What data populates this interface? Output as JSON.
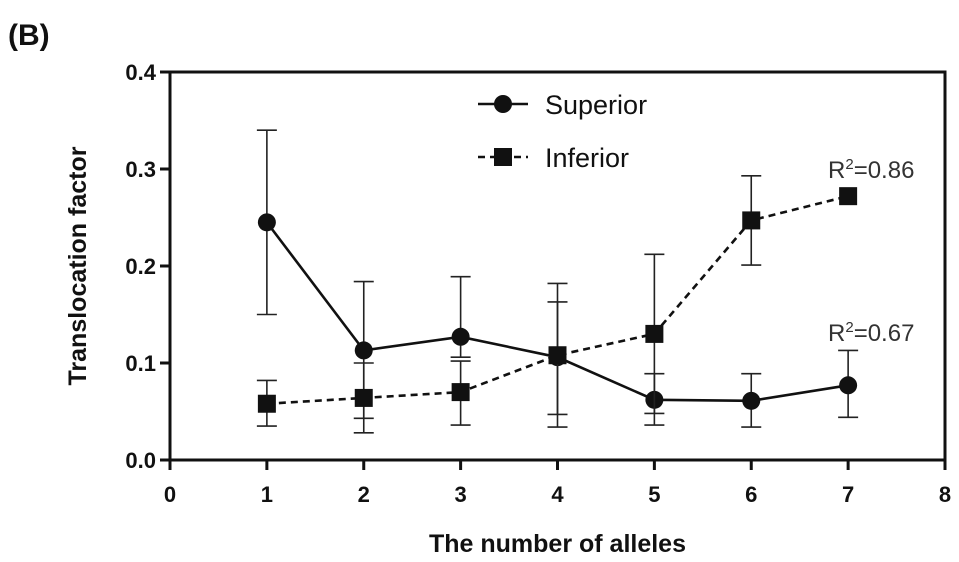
{
  "panel_label": "(B)",
  "chart_data": {
    "type": "line",
    "xlabel": "The number of alleles",
    "ylabel": "Translocation factor",
    "xlim": [
      0,
      8
    ],
    "ylim": [
      0,
      0.4
    ],
    "x_ticks": [
      "0",
      "1",
      "2",
      "3",
      "4",
      "5",
      "6",
      "7",
      "8"
    ],
    "y_ticks": [
      "0.0",
      "0.1",
      "0.2",
      "0.3",
      "0.4"
    ],
    "legend_position": "top-center",
    "grid": false,
    "series": [
      {
        "name": "Superior",
        "marker": "circle",
        "line_style": "solid",
        "x": [
          1,
          2,
          3,
          4,
          5,
          6,
          7
        ],
        "y": [
          0.245,
          0.113,
          0.127,
          0.106,
          0.062,
          0.061,
          0.077
        ],
        "error_upper": [
          0.34,
          0.184,
          0.189,
          0.163,
          0.089,
          0.089,
          0.113
        ],
        "error_lower": [
          0.15,
          0.043,
          0.106,
          0.047,
          0.036,
          0.034,
          0.044
        ],
        "annotation": "=0.67"
      },
      {
        "name": "Inferior",
        "marker": "square",
        "line_style": "dashed",
        "x": [
          1,
          2,
          3,
          4,
          5,
          6,
          7
        ],
        "y": [
          0.058,
          0.064,
          0.07,
          0.108,
          0.13,
          0.247,
          0.272
        ],
        "error_upper": [
          0.082,
          0.1,
          0.102,
          0.182,
          0.212,
          0.293,
          0.272
        ],
        "error_lower": [
          0.035,
          0.028,
          0.036,
          0.034,
          0.048,
          0.201,
          0.272
        ],
        "annotation": "=0.86"
      }
    ],
    "annotation_prefix": "R",
    "annotation_superscript": "2"
  }
}
